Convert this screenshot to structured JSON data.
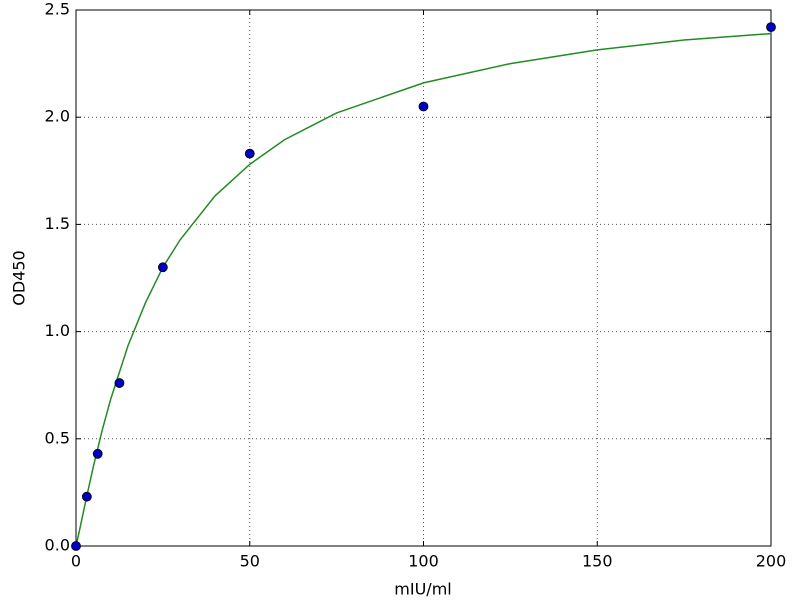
{
  "chart_data": {
    "type": "scatter",
    "x_label": "mIU/ml",
    "y_label": "OD450",
    "xlim": [
      0,
      200
    ],
    "xticks": [
      0,
      50,
      100,
      150,
      200
    ],
    "ylim": [
      0,
      2.5
    ],
    "yticks": [
      {
        "value": 0,
        "label": "0.0"
      },
      0.5,
      {
        "value": 1,
        "label": "1.0"
      },
      1.5,
      {
        "value": 2,
        "label": "2.0"
      },
      2.5
    ],
    "grid": true,
    "series": [
      {
        "type": "scatter",
        "color": "#0000bf",
        "x": [
          0,
          3.125,
          6.25,
          12.5,
          25,
          50,
          100,
          200
        ],
        "values": [
          0,
          0.23,
          0.43,
          0.76,
          1.3,
          1.83,
          2.05,
          2.42
        ]
      },
      {
        "type": "line",
        "color": "#228b22",
        "x": [
          0,
          1,
          2,
          3,
          5,
          7.5,
          10,
          15,
          20,
          25,
          30,
          40,
          50,
          60,
          75,
          100,
          125,
          150,
          175,
          200
        ],
        "values": [
          0,
          0.072,
          0.149,
          0.225,
          0.371,
          0.538,
          0.686,
          0.936,
          1.135,
          1.3,
          1.429,
          1.633,
          1.78,
          1.895,
          2.02,
          2.16,
          2.25,
          2.314,
          2.36,
          2.39
        ]
      }
    ]
  }
}
